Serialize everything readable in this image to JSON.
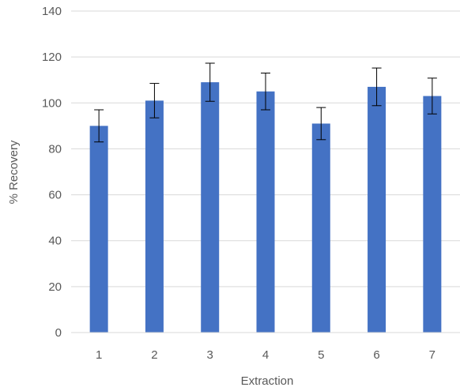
{
  "chart_data": {
    "type": "bar",
    "title": "",
    "xlabel": "Extraction",
    "ylabel": "% Recovery",
    "categories": [
      "1",
      "2",
      "3",
      "4",
      "5",
      "6",
      "7"
    ],
    "values": [
      90,
      101,
      109,
      105,
      91,
      107,
      103
    ],
    "error": [
      7,
      7.5,
      8.3,
      8,
      7,
      8.2,
      7.8
    ],
    "ylim": [
      0,
      140
    ],
    "yticks": [
      "0",
      "20",
      "40",
      "60",
      "80",
      "100",
      "120",
      "140"
    ],
    "grid": true,
    "colors": {
      "bar": "#4472C4",
      "grid": "#D9D9D9",
      "axis": "#D9D9D9",
      "error_bar": "#000000"
    }
  }
}
